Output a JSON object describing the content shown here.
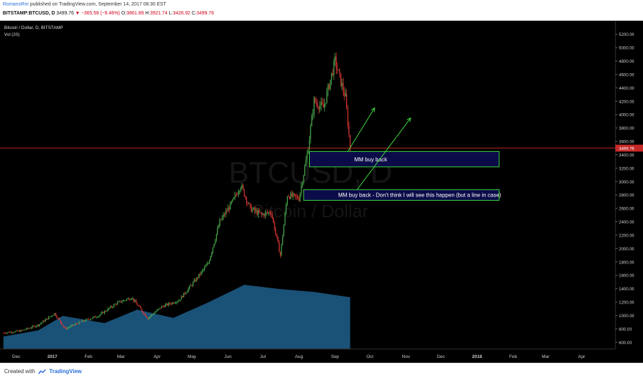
{
  "header": {
    "author": "RomanoRnr",
    "published_text": "published on TradingView.com, September 14, 2017 08:30 EST",
    "symbol_line": "BITSTAMP:BTCUSD, D",
    "last": "3499.76",
    "change": "−365.58 (−9.46%)",
    "o_label": "O:",
    "o_val": "3861.89",
    "h_label": "H:",
    "h_val": "3921.74",
    "l_label": "L:",
    "l_val": "3426.92",
    "c_label": "C:",
    "c_val": "3499.76"
  },
  "legend": {
    "title": "Bitcoin / Dollar, D, BITSTAMP",
    "vol": "Vol (20)"
  },
  "watermark": {
    "symbol": "BTCUSD, D",
    "name": "Bitcoin / Dollar"
  },
  "footer": {
    "created_with": "Created with",
    "brand": "TradingView"
  },
  "colors": {
    "up": "#4caf50",
    "down": "#e53935",
    "price_line": "#c62828",
    "box_border": "#3ddc3d",
    "box_fill": "#0b0b4a",
    "volume": "#1f5f8b",
    "axis_text": "#cccccc"
  },
  "chart_data": {
    "type": "candlestick",
    "title": "Bitcoin / Dollar, D, BITSTAMP",
    "y_ticks": [
      600,
      800,
      1000,
      1200,
      1400,
      1600,
      1800,
      2000,
      2200,
      2400,
      2600,
      2800,
      3000,
      3200,
      3400,
      3600,
      3800,
      4000,
      4200,
      4400,
      4600,
      4800,
      5000,
      5200
    ],
    "y_tick_labels": [
      "600.00",
      "800.00",
      "1000.00",
      "1200.00",
      "1400.00",
      "1600.00",
      "1800.00",
      "2000.00",
      "2200.00",
      "2400.00",
      "2600.00",
      "2800.00",
      "3000.00",
      "3200.00",
      "3400.00",
      "3600.00",
      "3800.00",
      "4000.00",
      "4200.00",
      "4400.00",
      "4600.00",
      "4800.00",
      "5000.00",
      "5200.00"
    ],
    "ylim": [
      500,
      5300
    ],
    "price_line": 3499.76,
    "price_label": "3499.76",
    "x_ticks": [
      "Dec",
      "2017",
      "Feb",
      "Mar",
      "Apr",
      "May",
      "Jun",
      "Jul",
      "Aug",
      "Sep",
      "Oct",
      "Nov",
      "Dec",
      "2018",
      "Feb",
      "Mar",
      "Apr"
    ],
    "price_path": [
      [
        "2016-11-20",
        740
      ],
      [
        "2016-12-05",
        770
      ],
      [
        "2016-12-20",
        860
      ],
      [
        "2017-01-03",
        1030
      ],
      [
        "2017-01-12",
        800
      ],
      [
        "2017-01-25",
        900
      ],
      [
        "2017-02-10",
        1000
      ],
      [
        "2017-02-25",
        1180
      ],
      [
        "2017-03-10",
        1270
      ],
      [
        "2017-03-24",
        960
      ],
      [
        "2017-04-05",
        1130
      ],
      [
        "2017-04-20",
        1230
      ],
      [
        "2017-05-05",
        1550
      ],
      [
        "2017-05-15",
        1780
      ],
      [
        "2017-05-25",
        2400
      ],
      [
        "2017-06-05",
        2700
      ],
      [
        "2017-06-12",
        2950
      ],
      [
        "2017-06-20",
        2600
      ],
      [
        "2017-06-30",
        2500
      ],
      [
        "2017-07-08",
        2550
      ],
      [
        "2017-07-16",
        1900
      ],
      [
        "2017-07-22",
        2800
      ],
      [
        "2017-08-01",
        2750
      ],
      [
        "2017-08-08",
        3400
      ],
      [
        "2017-08-14",
        4200
      ],
      [
        "2017-08-22",
        4100
      ],
      [
        "2017-09-01",
        4800
      ],
      [
        "2017-09-05",
        4550
      ],
      [
        "2017-09-10",
        4250
      ],
      [
        "2017-09-14",
        3499.76
      ]
    ],
    "volume_path": [
      [
        "2016-11-20",
        0.12
      ],
      [
        "2016-12-20",
        0.18
      ],
      [
        "2017-01-10",
        0.32
      ],
      [
        "2017-02-15",
        0.25
      ],
      [
        "2017-03-15",
        0.38
      ],
      [
        "2017-04-15",
        0.3
      ],
      [
        "2017-05-15",
        0.45
      ],
      [
        "2017-06-15",
        0.62
      ],
      [
        "2017-07-15",
        0.58
      ],
      [
        "2017-08-15",
        0.55
      ],
      [
        "2017-09-14",
        0.5
      ]
    ],
    "annotations": [
      {
        "label": "MM buy back",
        "zone": [
          3220,
          3450
        ],
        "from": "2017-08-10",
        "to": "2018-01-20",
        "arrow_from": [
          "2017-09-12",
          3450
        ],
        "arrow_to": [
          "2017-10-05",
          4100
        ]
      },
      {
        "label": "MM buy back - Don't think I will see this happen (but a line in case)",
        "zone": [
          2720,
          2880
        ],
        "from": "2017-08-05",
        "to": "2018-01-20",
        "arrow_from": [
          "2017-09-20",
          2880
        ],
        "arrow_to": [
          "2017-11-05",
          3950
        ]
      }
    ]
  }
}
